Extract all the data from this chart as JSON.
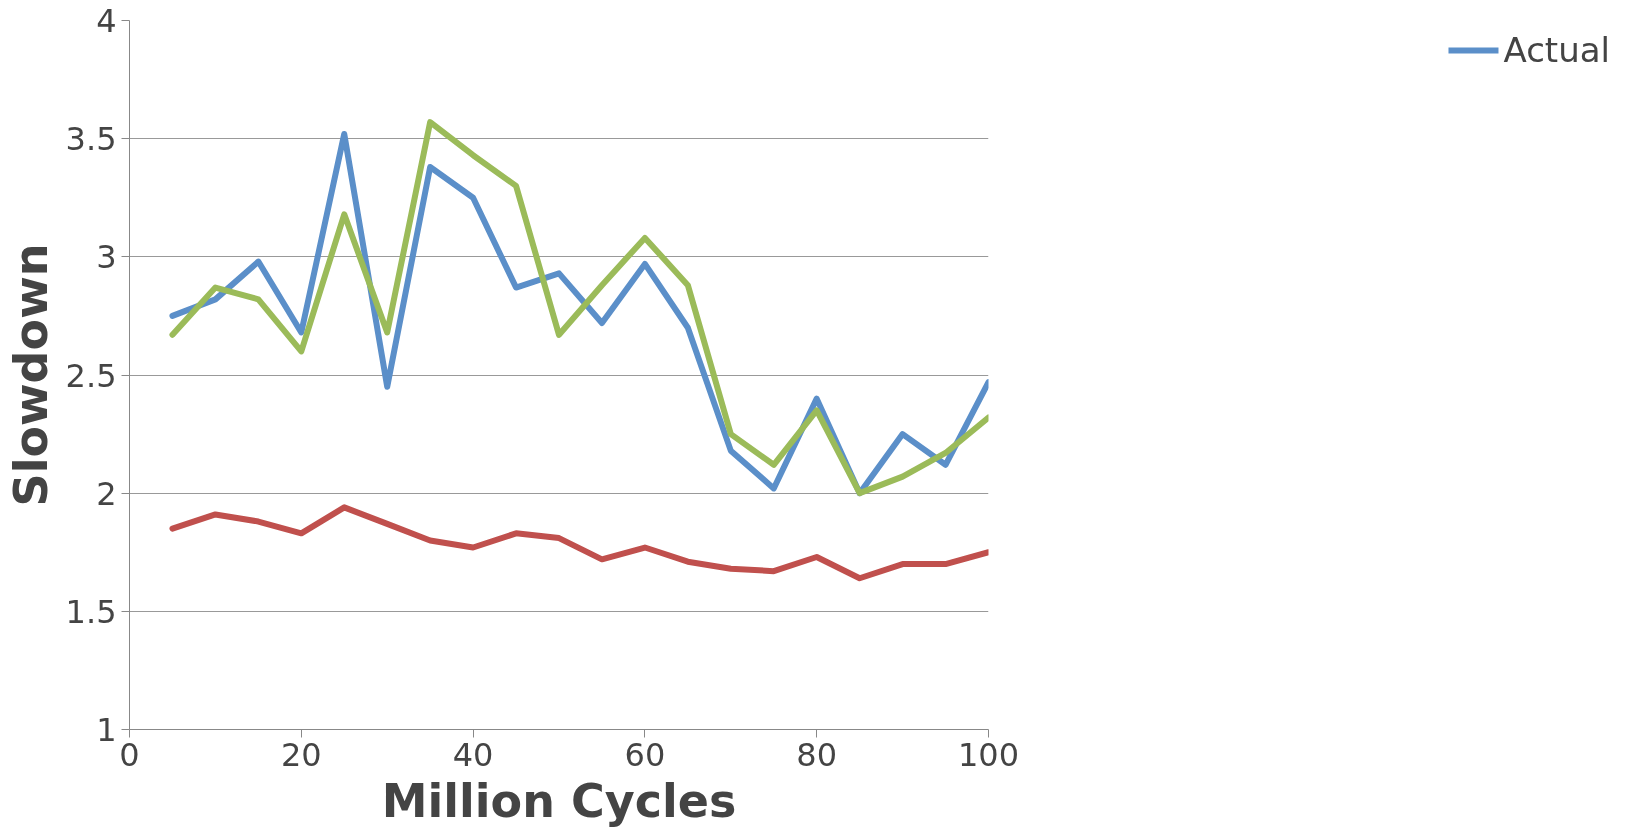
{
  "chart_data": {
    "type": "line",
    "xlabel": "Million Cycles",
    "ylabel": "Slowdown",
    "x": [
      5,
      10,
      15,
      20,
      25,
      30,
      35,
      40,
      45,
      50,
      55,
      60,
      65,
      70,
      75,
      80,
      85,
      90,
      95,
      100
    ],
    "series": [
      {
        "name": "Actual",
        "color": "#5b8fc9",
        "values": [
          2.75,
          2.82,
          2.98,
          2.68,
          3.52,
          2.45,
          3.38,
          3.25,
          2.87,
          2.93,
          2.72,
          2.97,
          2.7,
          2.18,
          2.02,
          2.4,
          2.0,
          2.25,
          2.12,
          2.47
        ]
      },
      {
        "color": "#c0504d",
        "values": [
          1.85,
          1.91,
          1.88,
          1.83,
          1.94,
          1.87,
          1.8,
          1.77,
          1.83,
          1.81,
          1.72,
          1.77,
          1.71,
          1.68,
          1.67,
          1.73,
          1.64,
          1.7,
          1.7,
          1.75
        ]
      },
      {
        "color": "#9bbb59",
        "values": [
          2.67,
          2.87,
          2.82,
          2.6,
          3.18,
          2.68,
          3.57,
          3.43,
          3.3,
          2.67,
          2.88,
          3.08,
          2.88,
          2.25,
          2.12,
          2.35,
          2.0,
          2.07,
          2.17,
          2.32
        ]
      }
    ],
    "xlim": [
      0,
      100
    ],
    "xticks": [
      0,
      20,
      40,
      60,
      80,
      100
    ],
    "ylim": [
      1,
      4
    ],
    "yticks": [
      1,
      1.5,
      2,
      2.5,
      3,
      3.5,
      4
    ],
    "grid": "y",
    "legend": "right",
    "marker": "none",
    "line_style": "solid"
  }
}
